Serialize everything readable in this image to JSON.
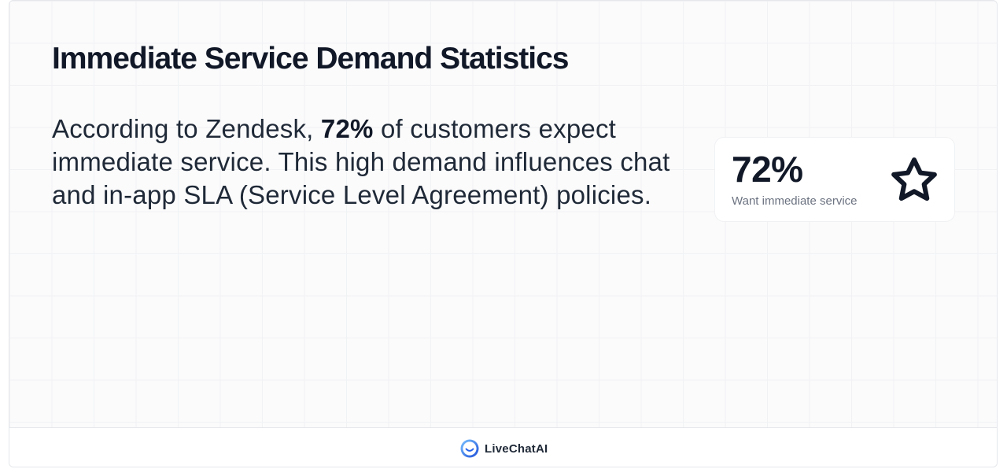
{
  "heading": {
    "title": "Immediate Service Demand Statistics"
  },
  "description": {
    "before": "According to Zendesk, ",
    "highlight": "72%",
    "after": " of customers expect immediate service. This high demand influences chat and in-app SLA (Service Level Agreement) policies."
  },
  "stat": {
    "value": "72%",
    "label": "Want immediate service",
    "icon": "star-icon"
  },
  "footer": {
    "brand_name": "LiveChatAI",
    "logo_icon": "livechatai-logo-icon"
  },
  "colors": {
    "text_primary": "#111827",
    "text_muted": "#6b7280",
    "accent_blue": "#2563eb"
  }
}
